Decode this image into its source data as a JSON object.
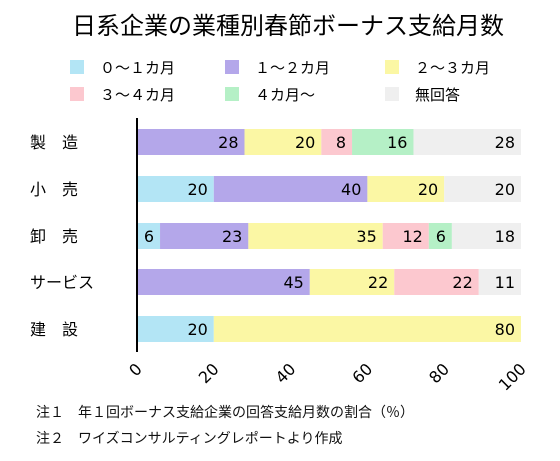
{
  "chart_data": {
    "type": "bar",
    "orientation": "horizontal",
    "stacked": true,
    "title": "日系企業の業種別春節ボーナス支給月数",
    "categories": [
      "製　造",
      "小　売",
      "卸　売",
      "サービス",
      "建　設"
    ],
    "series": [
      {
        "name": "０～１カ月",
        "color": "#b3e5f5",
        "values": [
          0,
          20,
          6,
          0,
          20
        ]
      },
      {
        "name": "１～２カ月",
        "color": "#b4a7ea",
        "values": [
          28,
          40,
          23,
          45,
          0
        ]
      },
      {
        "name": "２～３カ月",
        "color": "#fbf7a4",
        "values": [
          20,
          20,
          35,
          22,
          80
        ]
      },
      {
        "name": "３～４カ月",
        "color": "#fcc8cf",
        "values": [
          8,
          0,
          12,
          22,
          0
        ]
      },
      {
        "name": "４カ月～",
        "color": "#b5f0c6",
        "values": [
          16,
          0,
          6,
          0,
          0
        ]
      },
      {
        "name": "無回答",
        "color": "#efefef",
        "values": [
          28,
          20,
          18,
          11,
          0
        ]
      }
    ],
    "xlim": [
      0,
      100
    ],
    "xticks": [
      0,
      20,
      40,
      60,
      80,
      100
    ],
    "grid": false,
    "legend_position": "top"
  },
  "notes": [
    "注１　年１回ボーナス支給企業の回答支給月数の割合（％）",
    "注２　ワイズコンサルティングレポートより作成"
  ]
}
